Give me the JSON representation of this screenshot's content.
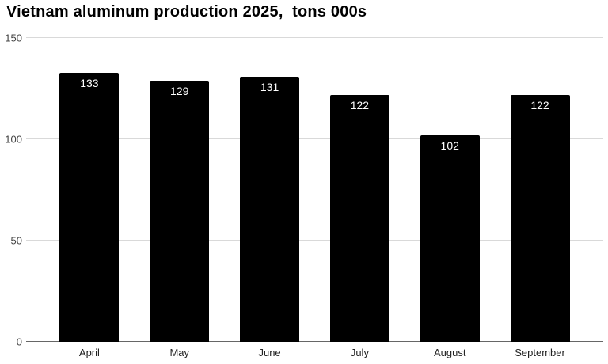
{
  "chart_data": {
    "type": "bar",
    "title": "Vietnam aluminum production 2025,  tons 000s",
    "categories": [
      "April",
      "May",
      "June",
      "July",
      "August",
      "September"
    ],
    "values": [
      133,
      129,
      131,
      122,
      102,
      122
    ],
    "xlabel": "",
    "ylabel": "",
    "ylim": [
      0,
      150
    ],
    "yticks": [
      0,
      50,
      100,
      150
    ],
    "grid": true,
    "legend": "none",
    "value_labels_position": "inside-top",
    "colors": {
      "bar": "#000000",
      "value_label": "#ffffff",
      "gridline": "#d9d9d9",
      "baseline": "#666666",
      "axis_text": "#444444",
      "category_text": "#222222",
      "title_text": "#000000",
      "background": "#ffffff"
    }
  }
}
